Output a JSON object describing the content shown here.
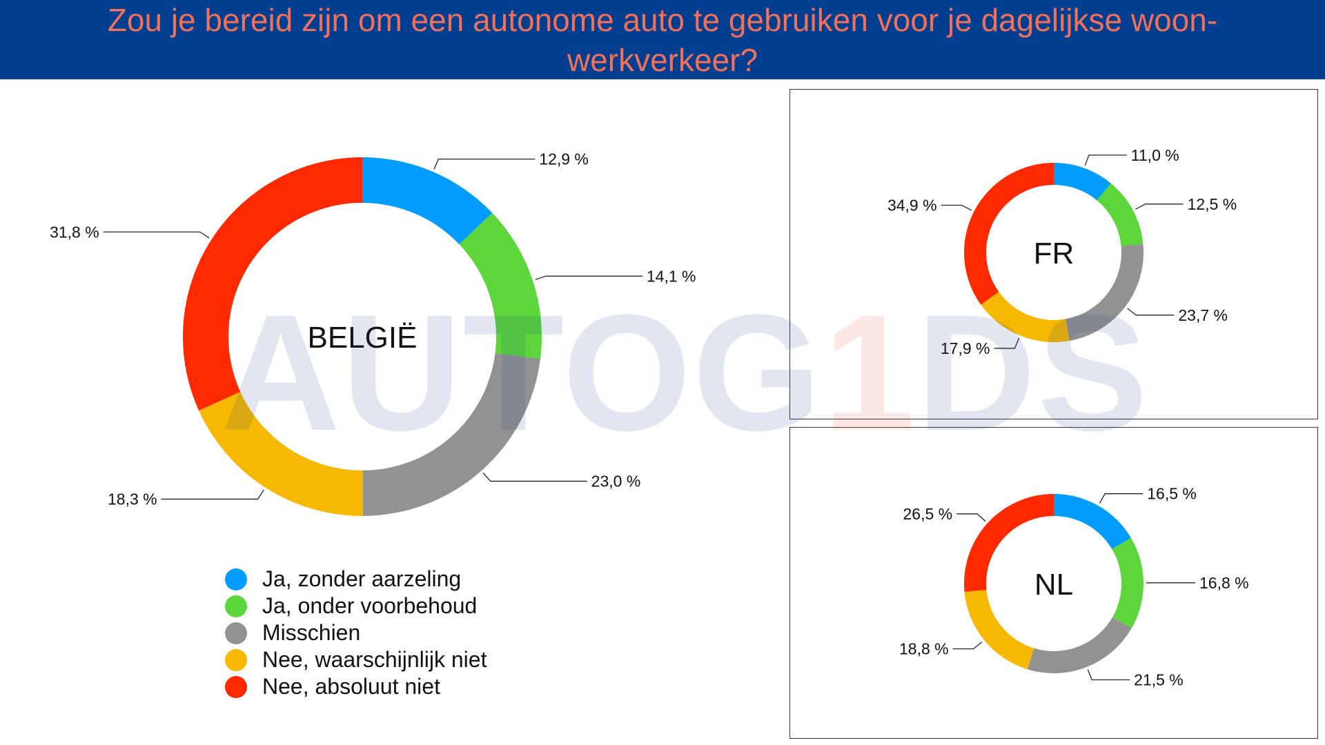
{
  "header": {
    "title": "Zou je bereid zijn om een autonome auto te gebruiken voor je dagelijkse woon-werkverkeer?"
  },
  "watermark": {
    "prefix": "AUTOG",
    "accent": "1",
    "suffix": "DS"
  },
  "legend": [
    {
      "label": "Ja, zonder aarzeling",
      "color": "#009dff"
    },
    {
      "label": "Ja, onder voorbehoud",
      "color": "#5cd63a"
    },
    {
      "label": "Misschien",
      "color": "#929292"
    },
    {
      "label": "Nee, waarschijnlijk niet",
      "color": "#f6b800"
    },
    {
      "label": "Nee, absoluut niet",
      "color": "#ff2a00"
    }
  ],
  "chart_data": [
    {
      "type": "pie",
      "donut": true,
      "center_label": "BELGIË",
      "categories": [
        "Ja, zonder aarzeling",
        "Ja, onder voorbehoud",
        "Misschien",
        "Nee, waarschijnlijk niet",
        "Nee, absoluut niet"
      ],
      "values": [
        12.9,
        14.1,
        23.0,
        18.3,
        31.8
      ],
      "value_labels": [
        "12,9 %",
        "14,1 %",
        "23,0 %",
        "18,3 %",
        "31,8 %"
      ]
    },
    {
      "type": "pie",
      "donut": true,
      "center_label": "FR",
      "categories": [
        "Ja, zonder aarzeling",
        "Ja, onder voorbehoud",
        "Misschien",
        "Nee, waarschijnlijk niet",
        "Nee, absoluut niet"
      ],
      "values": [
        11.0,
        12.5,
        23.7,
        17.9,
        34.9
      ],
      "value_labels": [
        "11,0 %",
        "12,5 %",
        "23,7 %",
        "17,9 %",
        "34,9 %"
      ]
    },
    {
      "type": "pie",
      "donut": true,
      "center_label": "NL",
      "categories": [
        "Ja, zonder aarzeling",
        "Ja, onder voorbehoud",
        "Misschien",
        "Nee, waarschijnlijk niet",
        "Nee, absoluut niet"
      ],
      "values": [
        16.5,
        16.8,
        21.5,
        18.8,
        26.5
      ],
      "value_labels": [
        "16,5 %",
        "16,8 %",
        "21,5 %",
        "18,8 %",
        "26,5 %"
      ]
    }
  ]
}
